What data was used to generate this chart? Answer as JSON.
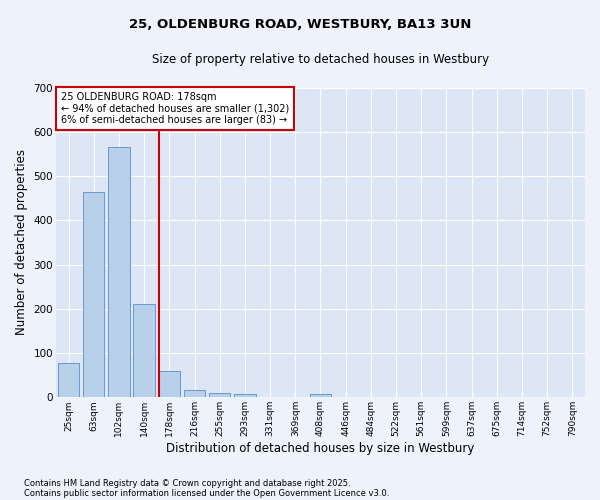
{
  "title1": "25, OLDENBURG ROAD, WESTBURY, BA13 3UN",
  "title2": "Size of property relative to detached houses in Westbury",
  "xlabel": "Distribution of detached houses by size in Westbury",
  "ylabel": "Number of detached properties",
  "categories": [
    "25sqm",
    "63sqm",
    "102sqm",
    "140sqm",
    "178sqm",
    "216sqm",
    "255sqm",
    "293sqm",
    "331sqm",
    "369sqm",
    "408sqm",
    "446sqm",
    "484sqm",
    "522sqm",
    "561sqm",
    "599sqm",
    "637sqm",
    "675sqm",
    "714sqm",
    "752sqm",
    "790sqm"
  ],
  "values": [
    78,
    465,
    565,
    210,
    60,
    17,
    10,
    7,
    0,
    0,
    8,
    0,
    0,
    0,
    0,
    0,
    0,
    0,
    0,
    0,
    0
  ],
  "bar_color": "#b8d0ea",
  "bar_edge_color": "#6699cc",
  "highlight_index": 4,
  "highlight_color": "#cc0000",
  "ylim": [
    0,
    700
  ],
  "yticks": [
    0,
    100,
    200,
    300,
    400,
    500,
    600,
    700
  ],
  "annotation_lines": [
    "25 OLDENBURG ROAD: 178sqm",
    "← 94% of detached houses are smaller (1,302)",
    "6% of semi-detached houses are larger (83) →"
  ],
  "footnote1": "Contains HM Land Registry data © Crown copyright and database right 2025.",
  "footnote2": "Contains public sector information licensed under the Open Government Licence v3.0.",
  "bg_color": "#eef2fb",
  "plot_bg_color": "#dce6f5"
}
